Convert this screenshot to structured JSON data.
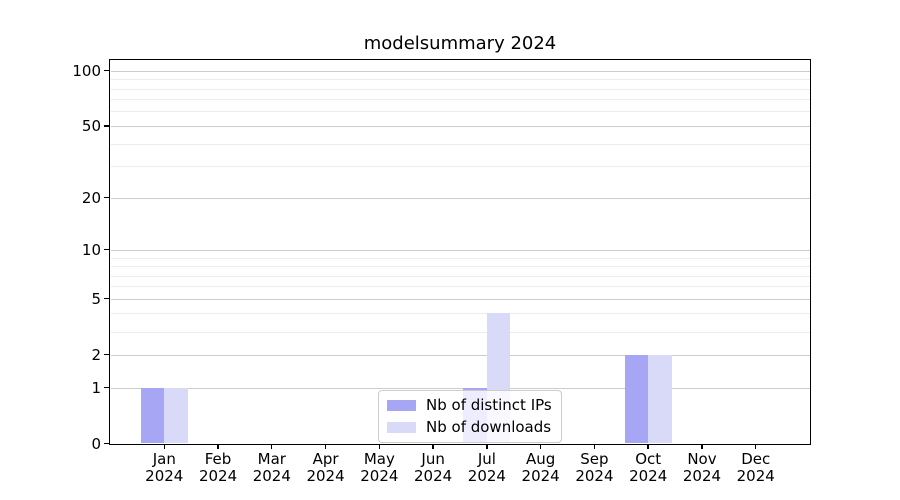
{
  "title": "modelsummary 2024",
  "colors": {
    "distinct_ips_bar": "#a6a6f4",
    "downloads_bar": "#d9d9f8",
    "grid_major": "#cccccc",
    "grid_minor": "#ececec",
    "spine": "#000000",
    "background": "#ffffff"
  },
  "legend": {
    "items": [
      {
        "label": "Nb of distinct IPs",
        "color": "#a6a6f4"
      },
      {
        "label": "Nb of downloads",
        "color": "#d9d9f8"
      }
    ],
    "position": "lower center"
  },
  "chart_data": {
    "type": "bar",
    "title": "modelsummary 2024",
    "categories": [
      "Jan 2024",
      "Feb 2024",
      "Mar 2024",
      "Apr 2024",
      "May 2024",
      "Jun 2024",
      "Jul 2024",
      "Aug 2024",
      "Sep 2024",
      "Oct 2024",
      "Nov 2024",
      "Dec 2024"
    ],
    "series": [
      {
        "name": "Nb of distinct IPs",
        "color": "#a6a6f4",
        "values": [
          1,
          0,
          0,
          0,
          0,
          0,
          1,
          0,
          0,
          2,
          0,
          0
        ]
      },
      {
        "name": "Nb of downloads",
        "color": "#d9d9f8",
        "values": [
          1,
          0,
          0,
          0,
          0,
          0,
          4,
          0,
          0,
          2,
          0,
          0
        ]
      }
    ],
    "xlabel": "",
    "ylabel": "",
    "y_scale": "log1p",
    "y_ticks": [
      0,
      1,
      2,
      5,
      10,
      20,
      50,
      100
    ],
    "y_minor_gridlines": [
      3,
      4,
      6,
      7,
      8,
      9,
      30,
      40,
      60,
      70,
      80,
      90
    ],
    "ylim": [
      0,
      115
    ],
    "grid": true,
    "legend_position": "lower center"
  }
}
